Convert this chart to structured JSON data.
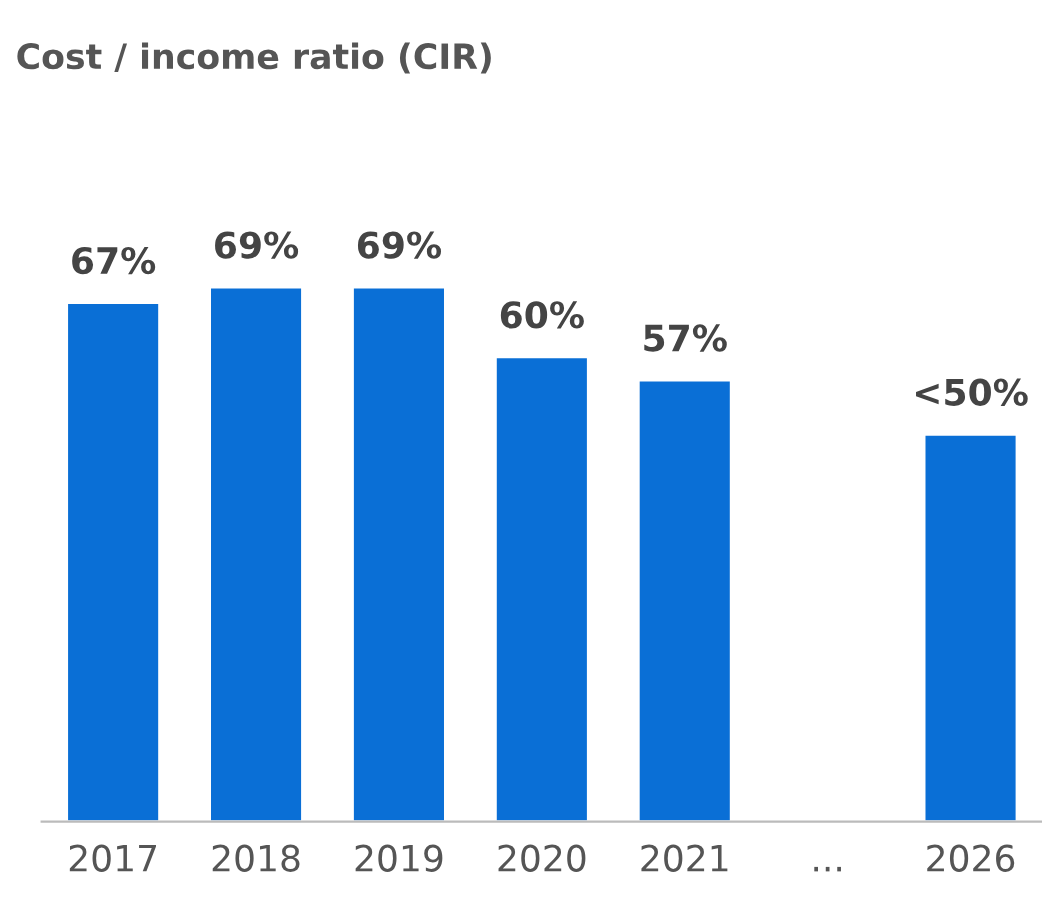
{
  "chart_data": {
    "type": "bar",
    "title": "Cost / income ratio (CIR)",
    "categories": [
      "2017",
      "2018",
      "2019",
      "2020",
      "2021",
      "...",
      "2026"
    ],
    "values": [
      67,
      69,
      69,
      60,
      57,
      null,
      50
    ],
    "value_labels": [
      "67%",
      "69%",
      "69%",
      "60%",
      "57%",
      null,
      "<50%"
    ],
    "color": "#0a6fd6",
    "grid": false,
    "legend": false,
    "tick_labels": "x"
  }
}
